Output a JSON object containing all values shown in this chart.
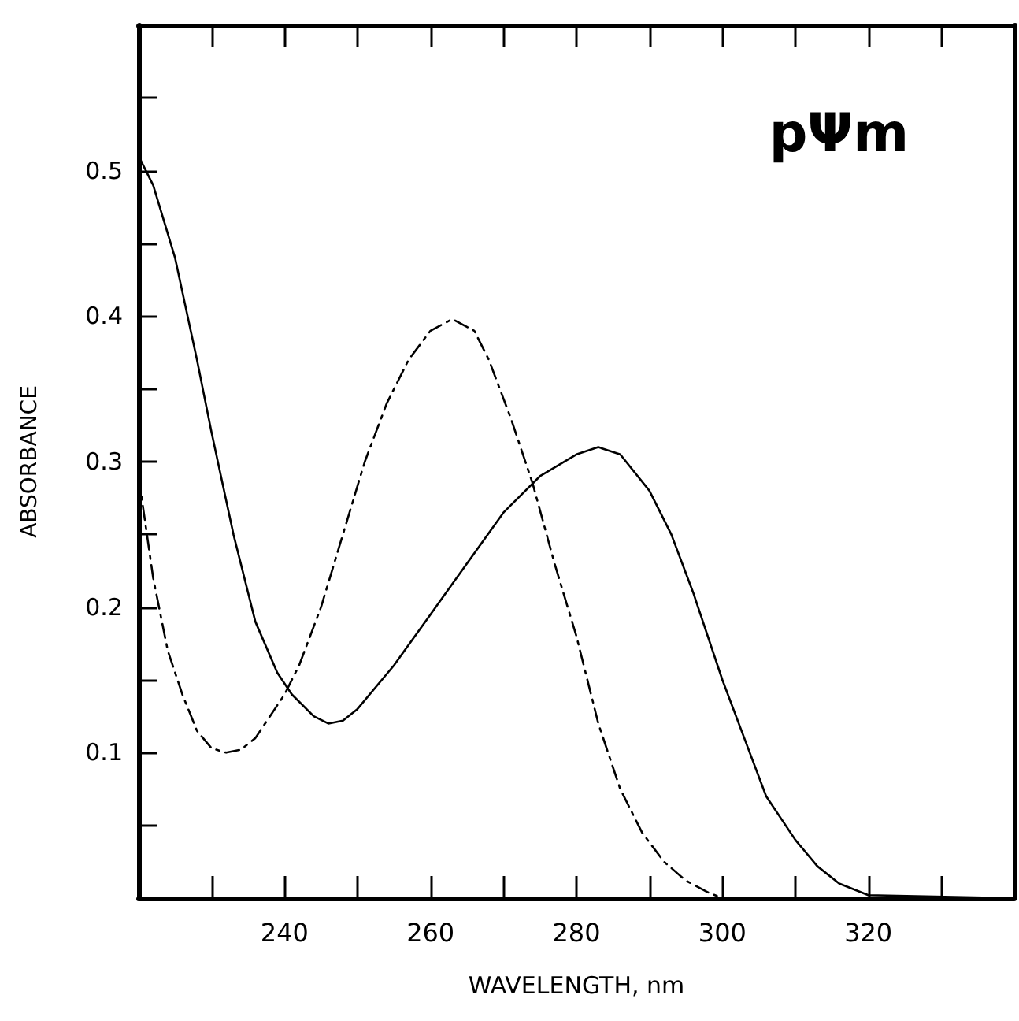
{
  "chart_data": {
    "type": "line",
    "xlabel": "WAVELENGTH, nm",
    "ylabel": "ABSORBANCE",
    "annotations": [
      "pΨm"
    ],
    "xlim": [
      220,
      340
    ],
    "xticks": [
      {
        "value": 230,
        "label": null
      },
      240,
      {
        "value": 250,
        "label": null
      },
      260,
      {
        "value": 270,
        "label": null
      },
      280,
      {
        "value": 290,
        "label": null
      },
      300,
      {
        "value": 310,
        "label": null
      },
      320,
      {
        "value": 330,
        "label": null
      }
    ],
    "ylim": [
      0,
      0.6
    ],
    "yticks": [
      {
        "value": 0.05,
        "label": null
      },
      0.1,
      {
        "value": 0.15,
        "label": null
      },
      0.2,
      {
        "value": 0.25,
        "label": null
      },
      0.3,
      {
        "value": 0.35,
        "label": null
      },
      0.4,
      {
        "value": 0.45,
        "label": null
      },
      0.5,
      {
        "value": 0.55,
        "label": null
      }
    ],
    "marker": "none",
    "series": [
      {
        "color": "#000000",
        "line_style": "solid",
        "x": [
          220,
          222,
          225,
          228,
          230,
          233,
          236,
          239,
          241,
          244,
          246,
          248,
          250,
          255,
          260,
          265,
          270,
          275,
          280,
          283,
          286,
          290,
          293,
          296,
          300,
          303,
          306,
          310,
          313,
          316,
          320,
          340
        ],
        "values": [
          0.51,
          0.49,
          0.44,
          0.37,
          0.32,
          0.25,
          0.19,
          0.155,
          0.14,
          0.125,
          0.12,
          0.122,
          0.13,
          0.16,
          0.195,
          0.23,
          0.265,
          0.29,
          0.305,
          0.31,
          0.305,
          0.28,
          0.25,
          0.21,
          0.15,
          0.11,
          0.07,
          0.04,
          0.022,
          0.01,
          0.002,
          0
        ]
      },
      {
        "color": "#000000",
        "line_style": "dashed",
        "x": [
          220,
          222,
          224,
          226,
          228,
          230,
          232,
          234,
          236,
          238,
          240,
          242,
          245,
          248,
          251,
          254,
          257,
          260,
          263,
          266,
          268,
          271,
          274,
          277,
          280,
          283,
          286,
          289,
          292,
          295,
          298,
          300
        ],
        "values": [
          0.29,
          0.22,
          0.17,
          0.14,
          0.115,
          0.103,
          0.1,
          0.102,
          0.11,
          0.125,
          0.14,
          0.16,
          0.2,
          0.25,
          0.3,
          0.34,
          0.37,
          0.39,
          0.398,
          0.39,
          0.37,
          0.33,
          0.285,
          0.23,
          0.18,
          0.12,
          0.075,
          0.045,
          0.025,
          0.012,
          0.004,
          0
        ]
      }
    ]
  }
}
